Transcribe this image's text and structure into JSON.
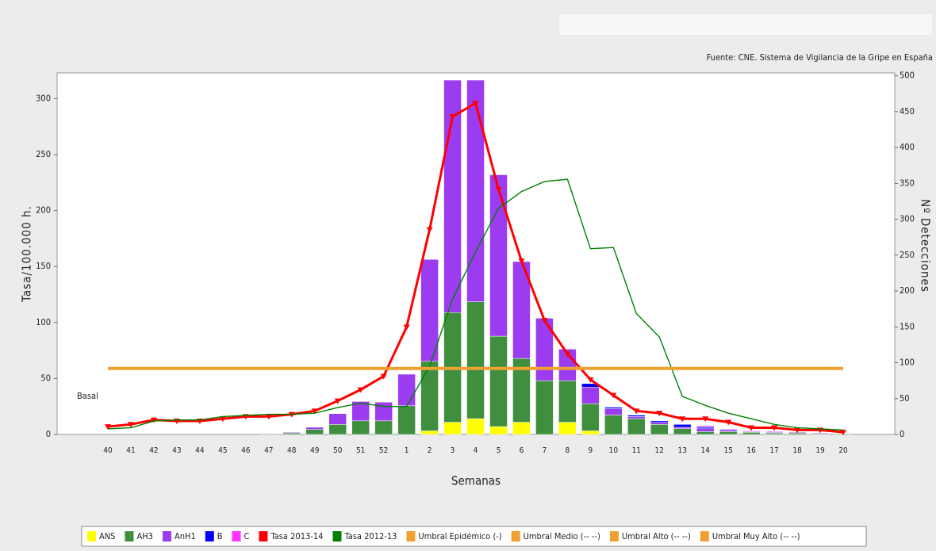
{
  "chart_data": {
    "type": "bar",
    "source": "Fuente: CNE. Sistema de Vigilancia de la Gripe en España",
    "annotation": "Basal",
    "x_label": "Semanas",
    "y_label": "Tasa/100.000 h.",
    "y2_label": "Nº Detecciones",
    "categories": [
      "40",
      "41",
      "42",
      "43",
      "44",
      "45",
      "46",
      "47",
      "48",
      "49",
      "50",
      "51",
      "52",
      "1",
      "2",
      "3",
      "4",
      "5",
      "6",
      "7",
      "8",
      "9",
      "10",
      "11",
      "12",
      "13",
      "14",
      "15",
      "16",
      "17",
      "18",
      "19",
      "20"
    ],
    "ylim": [
      0,
      323
    ],
    "yticks": [
      0,
      50,
      100,
      150,
      200,
      250,
      300
    ],
    "y2lim": [
      0,
      504
    ],
    "y2ticks": [
      0,
      50,
      100,
      150,
      200,
      250,
      300,
      350,
      400,
      450,
      500
    ],
    "series": [
      {
        "name": "ANS",
        "type": "bar",
        "axis": "y2",
        "color": "#ffff00",
        "values": [
          0,
          0,
          0,
          0,
          0,
          0,
          0,
          0,
          0,
          0,
          0,
          0,
          0,
          0,
          5,
          17,
          22,
          11,
          17,
          0,
          17,
          5,
          0,
          0,
          0,
          0,
          0,
          0,
          0,
          0,
          0,
          0,
          0
        ]
      },
      {
        "name": "AH3",
        "type": "bar",
        "axis": "y2",
        "color": "#3f8f3f",
        "values": [
          0,
          0,
          0,
          0,
          0,
          0,
          0,
          1,
          2,
          7,
          14,
          19,
          19,
          40,
          97,
          153,
          163,
          126,
          89,
          75,
          58,
          38,
          27,
          22,
          14,
          8,
          4,
          4,
          3,
          2,
          2,
          1,
          1
        ]
      },
      {
        "name": "AnH1",
        "type": "bar",
        "axis": "y2",
        "color": "#9b3cf0",
        "values": [
          0,
          0,
          0,
          0,
          0,
          0,
          0,
          0,
          1,
          3,
          15,
          27,
          26,
          44,
          142,
          324,
          309,
          225,
          135,
          87,
          44,
          23,
          9,
          3,
          3,
          2,
          4,
          2,
          1,
          1,
          1,
          1,
          0
        ]
      },
      {
        "name": "B",
        "type": "bar",
        "axis": "y2",
        "color": "#0000ff",
        "values": [
          0,
          0,
          0,
          0,
          0,
          0,
          0,
          0,
          0,
          0,
          0,
          0,
          0,
          0,
          0,
          0,
          0,
          0,
          0,
          0,
          0,
          5,
          2,
          2,
          2,
          4,
          2,
          1,
          0,
          0,
          0,
          0,
          0
        ]
      },
      {
        "name": "C",
        "type": "bar",
        "axis": "y2",
        "color": "#ff33ff",
        "values": [
          0,
          0,
          0,
          0,
          0,
          0,
          0,
          0,
          0,
          0,
          0,
          0,
          0,
          0,
          0,
          0,
          0,
          0,
          0,
          0,
          0,
          0,
          0,
          0,
          0,
          0,
          2,
          1,
          1,
          1,
          0,
          0,
          0
        ]
      },
      {
        "name": "Tasa 2013-14",
        "type": "line",
        "color": "#ff0000",
        "values": [
          7,
          9,
          13,
          12,
          12,
          14,
          16,
          16,
          18,
          21,
          30,
          40,
          52,
          96,
          183,
          284,
          296,
          219,
          155,
          102,
          72,
          49,
          35,
          21,
          19,
          14,
          14,
          11,
          6,
          6,
          4,
          4,
          2
        ]
      },
      {
        "name": "Tasa 2012-13",
        "type": "line",
        "color": "#008000",
        "values": [
          5,
          6,
          12,
          13,
          13,
          16,
          17,
          18,
          18,
          19,
          24,
          28,
          25,
          25,
          61,
          121,
          163,
          202,
          217,
          226,
          228,
          166,
          167,
          108,
          87,
          34,
          26,
          19,
          14,
          9,
          6,
          5,
          4
        ]
      },
      {
        "name": "Umbral Epidémico (-)",
        "type": "threshold",
        "color": "#f0a030",
        "value": 59
      },
      {
        "name": "Umbral Medio (-- --)",
        "color": "#f0a030"
      },
      {
        "name": "Umbral Alto (-- --)",
        "color": "#f0a030"
      },
      {
        "name": "Umbral Muy Alto (-- --)",
        "color": "#f0a030"
      }
    ]
  }
}
